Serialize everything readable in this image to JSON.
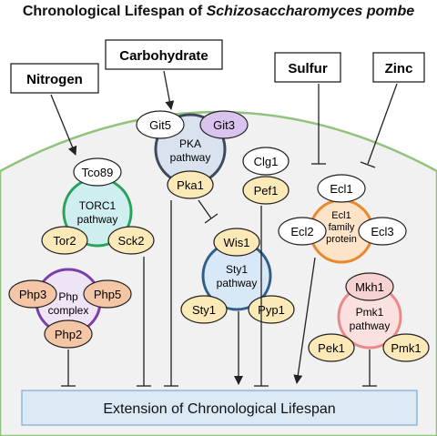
{
  "title": {
    "main": "Chronological Lifespan of ",
    "organism": "Schizosaccharomyces pombe"
  },
  "inputs": {
    "nitrogen": "Nitrogen",
    "carbohydrate": "Carbohydrate",
    "sulfur": "Sulfur",
    "zinc": "Zinc"
  },
  "torc1": {
    "label_line1": "TORC1",
    "label_line2": "pathway",
    "tco89": "Tco89",
    "tor2": "Tor2",
    "sck2": "Sck2"
  },
  "pka": {
    "label_line1": "PKA",
    "label_line2": "pathway",
    "git5": "Git5",
    "git3": "Git3",
    "pka1": "Pka1"
  },
  "clg": {
    "clg1": "Clg1",
    "pef1": "Pef1"
  },
  "sty1": {
    "label_line1": "Sty1",
    "label_line2": "pathway",
    "wis1": "Wis1",
    "sty1": "Sty1",
    "pyp1": "Pyp1"
  },
  "ecl": {
    "label_line1": "Ecl1",
    "label_line2": "family",
    "label_line3": "protein",
    "ecl1": "Ecl1",
    "ecl2": "Ecl2",
    "ecl3": "Ecl3"
  },
  "php": {
    "label_line1": "Php",
    "label_line2": "complex",
    "php3": "Php3",
    "php5": "Php5",
    "php2": "Php2"
  },
  "pmk": {
    "label_line1": "Pmk1",
    "label_line2": "pathway",
    "mkh1": "Mkh1",
    "pek1": "Pek1",
    "pmk1": "Pmk1"
  },
  "outcome": "Extension of Chronological Lifespan",
  "colors": {
    "cell_fill": "#f1f1f1",
    "cell_border": "#92c37c",
    "torc1": "#2aa25c",
    "torc1_fill": "#cfeef0",
    "pka": "#3c4a5c",
    "pka_fill": "#d9e2ef",
    "sty1": "#2e5f8a",
    "sty1_fill": "#d8e8f6",
    "ecl": "#e8892f",
    "ecl_fill": "#fde3c8",
    "php": "#7a3fa8",
    "php_fill": "#efe4f6",
    "pmk": "#e88a8a",
    "pmk_fill": "#fbe0e0",
    "yellow": "#fbeab8",
    "purple": "#d8c4ee",
    "orange": "#f5c6a5",
    "pink": "#f7d2d2",
    "outcome_fill": "#dbe9f5",
    "outcome_border": "#7fa7cf"
  }
}
